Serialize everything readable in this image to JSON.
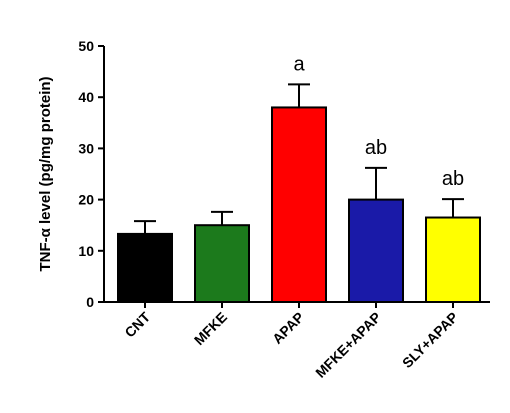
{
  "chart_data": {
    "type": "bar",
    "y_label": "TNF-α level (pg/mg protein)",
    "categories": [
      "CNT",
      "MFKE",
      "APAP",
      "MFKE+APAP",
      "SLY+APAP"
    ],
    "values": [
      13.3,
      15,
      38,
      20,
      16.5
    ],
    "errors": [
      2.5,
      2.6,
      4.5,
      6.2,
      3.6
    ],
    "colors": [
      "#000000",
      "#1c7a1c",
      "#ff0000",
      "#1a1aa8",
      "#ffff00"
    ],
    "annotations": [
      {
        "category": "APAP",
        "text": "a"
      },
      {
        "category": "MFKE+APAP",
        "text": "ab"
      },
      {
        "category": "SLY+APAP",
        "text": "ab"
      }
    ],
    "ylim": [
      0,
      50
    ],
    "yticks": [
      0,
      10,
      20,
      30,
      40,
      50
    ]
  }
}
